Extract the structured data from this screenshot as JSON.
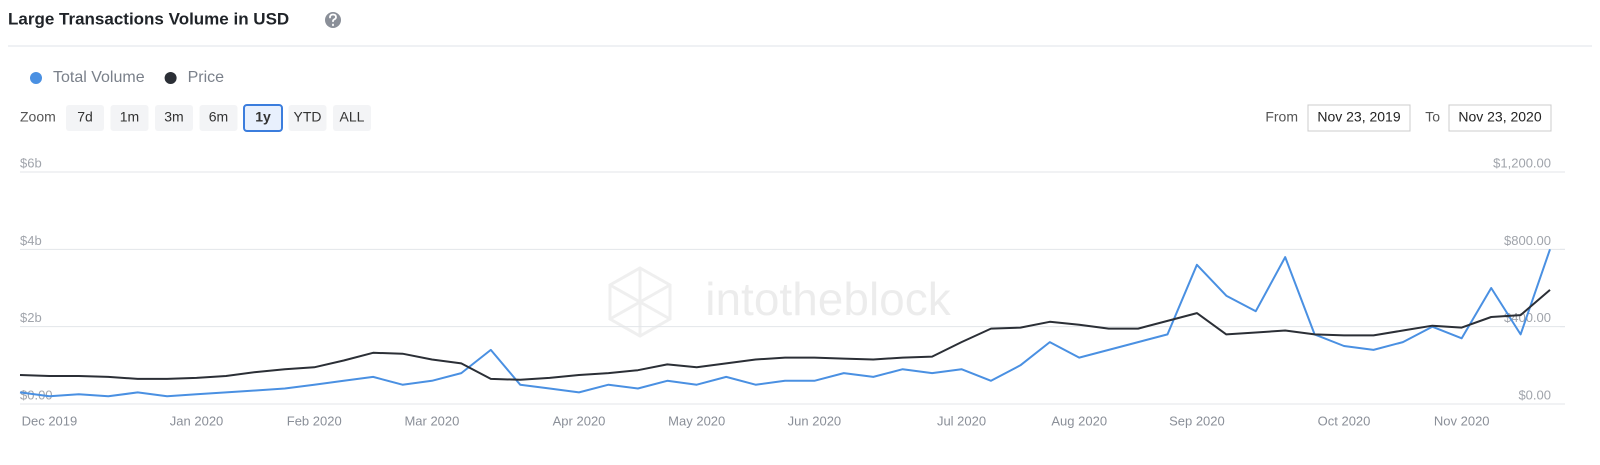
{
  "chart_data": {
    "type": "line",
    "title": "Large Transactions Volume in USD",
    "watermark": "intotheblock",
    "categories": [
      null,
      "Dec 2019",
      null,
      null,
      null,
      null,
      "Jan 2020",
      null,
      null,
      null,
      "Feb 2020",
      null,
      null,
      null,
      "Mar 2020",
      null,
      null,
      null,
      null,
      "Apr 2020",
      null,
      null,
      null,
      "May 2020",
      null,
      null,
      null,
      "Jun 2020",
      null,
      null,
      null,
      null,
      "Jul 2020",
      null,
      null,
      null,
      "Aug 2020",
      null,
      null,
      null,
      "Sep 2020",
      null,
      null,
      null,
      null,
      "Oct 2020",
      null,
      null,
      null,
      "Nov 2020",
      null,
      null,
      null
    ],
    "series": [
      {
        "name": "Total Volume",
        "color": "#4a90e2",
        "axis": "y",
        "values": [
          0.3,
          0.2,
          0.25,
          0.2,
          0.3,
          0.2,
          0.25,
          0.3,
          0.35,
          0.4,
          0.5,
          0.6,
          0.7,
          0.5,
          0.6,
          0.8,
          1.4,
          0.5,
          0.4,
          0.3,
          0.5,
          0.4,
          0.6,
          0.5,
          0.7,
          0.5,
          0.6,
          0.6,
          0.8,
          0.7,
          0.9,
          0.8,
          0.9,
          0.6,
          1.0,
          1.6,
          1.2,
          1.4,
          1.6,
          1.8,
          3.6,
          2.8,
          2.4,
          3.8,
          1.8,
          1.5,
          1.4,
          1.6,
          2.0,
          1.7,
          3.0,
          1.8,
          4.0
        ]
      },
      {
        "name": "Price",
        "color": "#2b2f36",
        "axis": "y2",
        "values": [
          150,
          145,
          145,
          140,
          130,
          130,
          135,
          145,
          165,
          180,
          190,
          225,
          265,
          260,
          230,
          210,
          130,
          125,
          135,
          150,
          160,
          175,
          205,
          190,
          210,
          230,
          240,
          240,
          235,
          230,
          240,
          245,
          320,
          390,
          395,
          425,
          410,
          390,
          390,
          430,
          470,
          360,
          370,
          380,
          360,
          355,
          355,
          380,
          405,
          395,
          450,
          460,
          590
        ]
      }
    ],
    "ylim": [
      0,
      6
    ],
    "yticks": [
      {
        "value": 0,
        "label": "$0.00"
      },
      {
        "value": 2,
        "label": "$2b"
      },
      {
        "value": 4,
        "label": "$4b"
      },
      {
        "value": 6,
        "label": "$6b"
      }
    ],
    "y2lim": [
      0,
      1200
    ],
    "y2ticks": [
      {
        "value": 0,
        "label": "$0.00"
      },
      {
        "value": 400,
        "label": "$400.00"
      },
      {
        "value": 800,
        "label": "$800.00"
      },
      {
        "value": 1200,
        "label": "$1,200.00"
      }
    ],
    "grid": true
  },
  "controls": {
    "zoom_label": "Zoom",
    "zoom_buttons": [
      "7d",
      "1m",
      "3m",
      "6m",
      "1y",
      "YTD",
      "ALL"
    ],
    "selected_zoom": 4,
    "from_label": "From",
    "from_date": "Nov 23, 2019",
    "to_label": "To",
    "to_date": "Nov 23, 2020"
  }
}
